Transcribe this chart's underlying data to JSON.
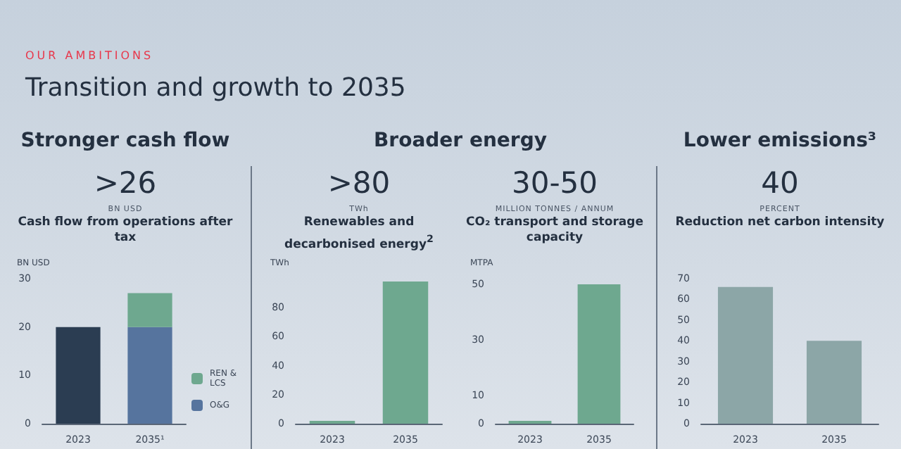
{
  "chart_data": [
    {
      "type": "bar",
      "annotations": [
        "OUR AMBITIONS",
        "Transition and growth to 2035",
        "Stronger cash flow",
        ">26"
      ],
      "subtitle": "BN USD",
      "title": "Cash flow from operations after tax",
      "ylabel": "BN USD",
      "categories": [
        "2023",
        "2035¹"
      ],
      "stacked": true,
      "legend": "bottom right",
      "grid": false,
      "series": [
        {
          "color": "#2b3d52",
          "values": [
            20,
            null
          ]
        },
        {
          "name": "O&G",
          "color": "#56749e",
          "values": [
            null,
            20
          ]
        },
        {
          "name": "REN & LCS",
          "color": "#6ea88f",
          "values": [
            null,
            7
          ]
        }
      ],
      "ylim": [
        0,
        30
      ],
      "yticks": [
        0,
        10,
        20,
        30
      ]
    },
    {
      "type": "bar",
      "annotations": [
        "Broader energy",
        ">80"
      ],
      "subtitle": "TWh",
      "title": "Renewables and decarbonised energy$^{2}$",
      "ylabel": "TWh",
      "categories": [
        "2023",
        "2035"
      ],
      "grid": false,
      "series": [
        {
          "color": "#6ea88f",
          "values": [
            2,
            98
          ]
        }
      ],
      "ylim": [
        0,
        100
      ],
      "yticks": [
        0,
        20,
        40,
        60,
        80
      ]
    },
    {
      "type": "bar",
      "annotations": [
        "30-50"
      ],
      "subtitle": "MILLION TONNES / ANNUM",
      "title": "CO₂ transport and storage capacity",
      "ylabel": "MTPA",
      "categories": [
        "2023",
        "2035"
      ],
      "grid": false,
      "series": [
        {
          "color": "#6ea88f",
          "values": [
            1,
            50
          ]
        }
      ],
      "ylim": [
        0,
        52
      ],
      "yticks": [
        0,
        10,
        30,
        50
      ]
    },
    {
      "type": "bar",
      "annotations": [
        "Lower emissions³",
        "40"
      ],
      "subtitle": "PERCENT",
      "title": "Reduction net carbon intensity",
      "categories": [
        "2023",
        "2035"
      ],
      "grid": false,
      "series": [
        {
          "color": "#8ca6a7",
          "values": [
            66,
            40
          ]
        }
      ],
      "ylim": [
        0,
        70
      ],
      "yticks": [
        0,
        10,
        20,
        30,
        40,
        50,
        60,
        70
      ]
    }
  ]
}
